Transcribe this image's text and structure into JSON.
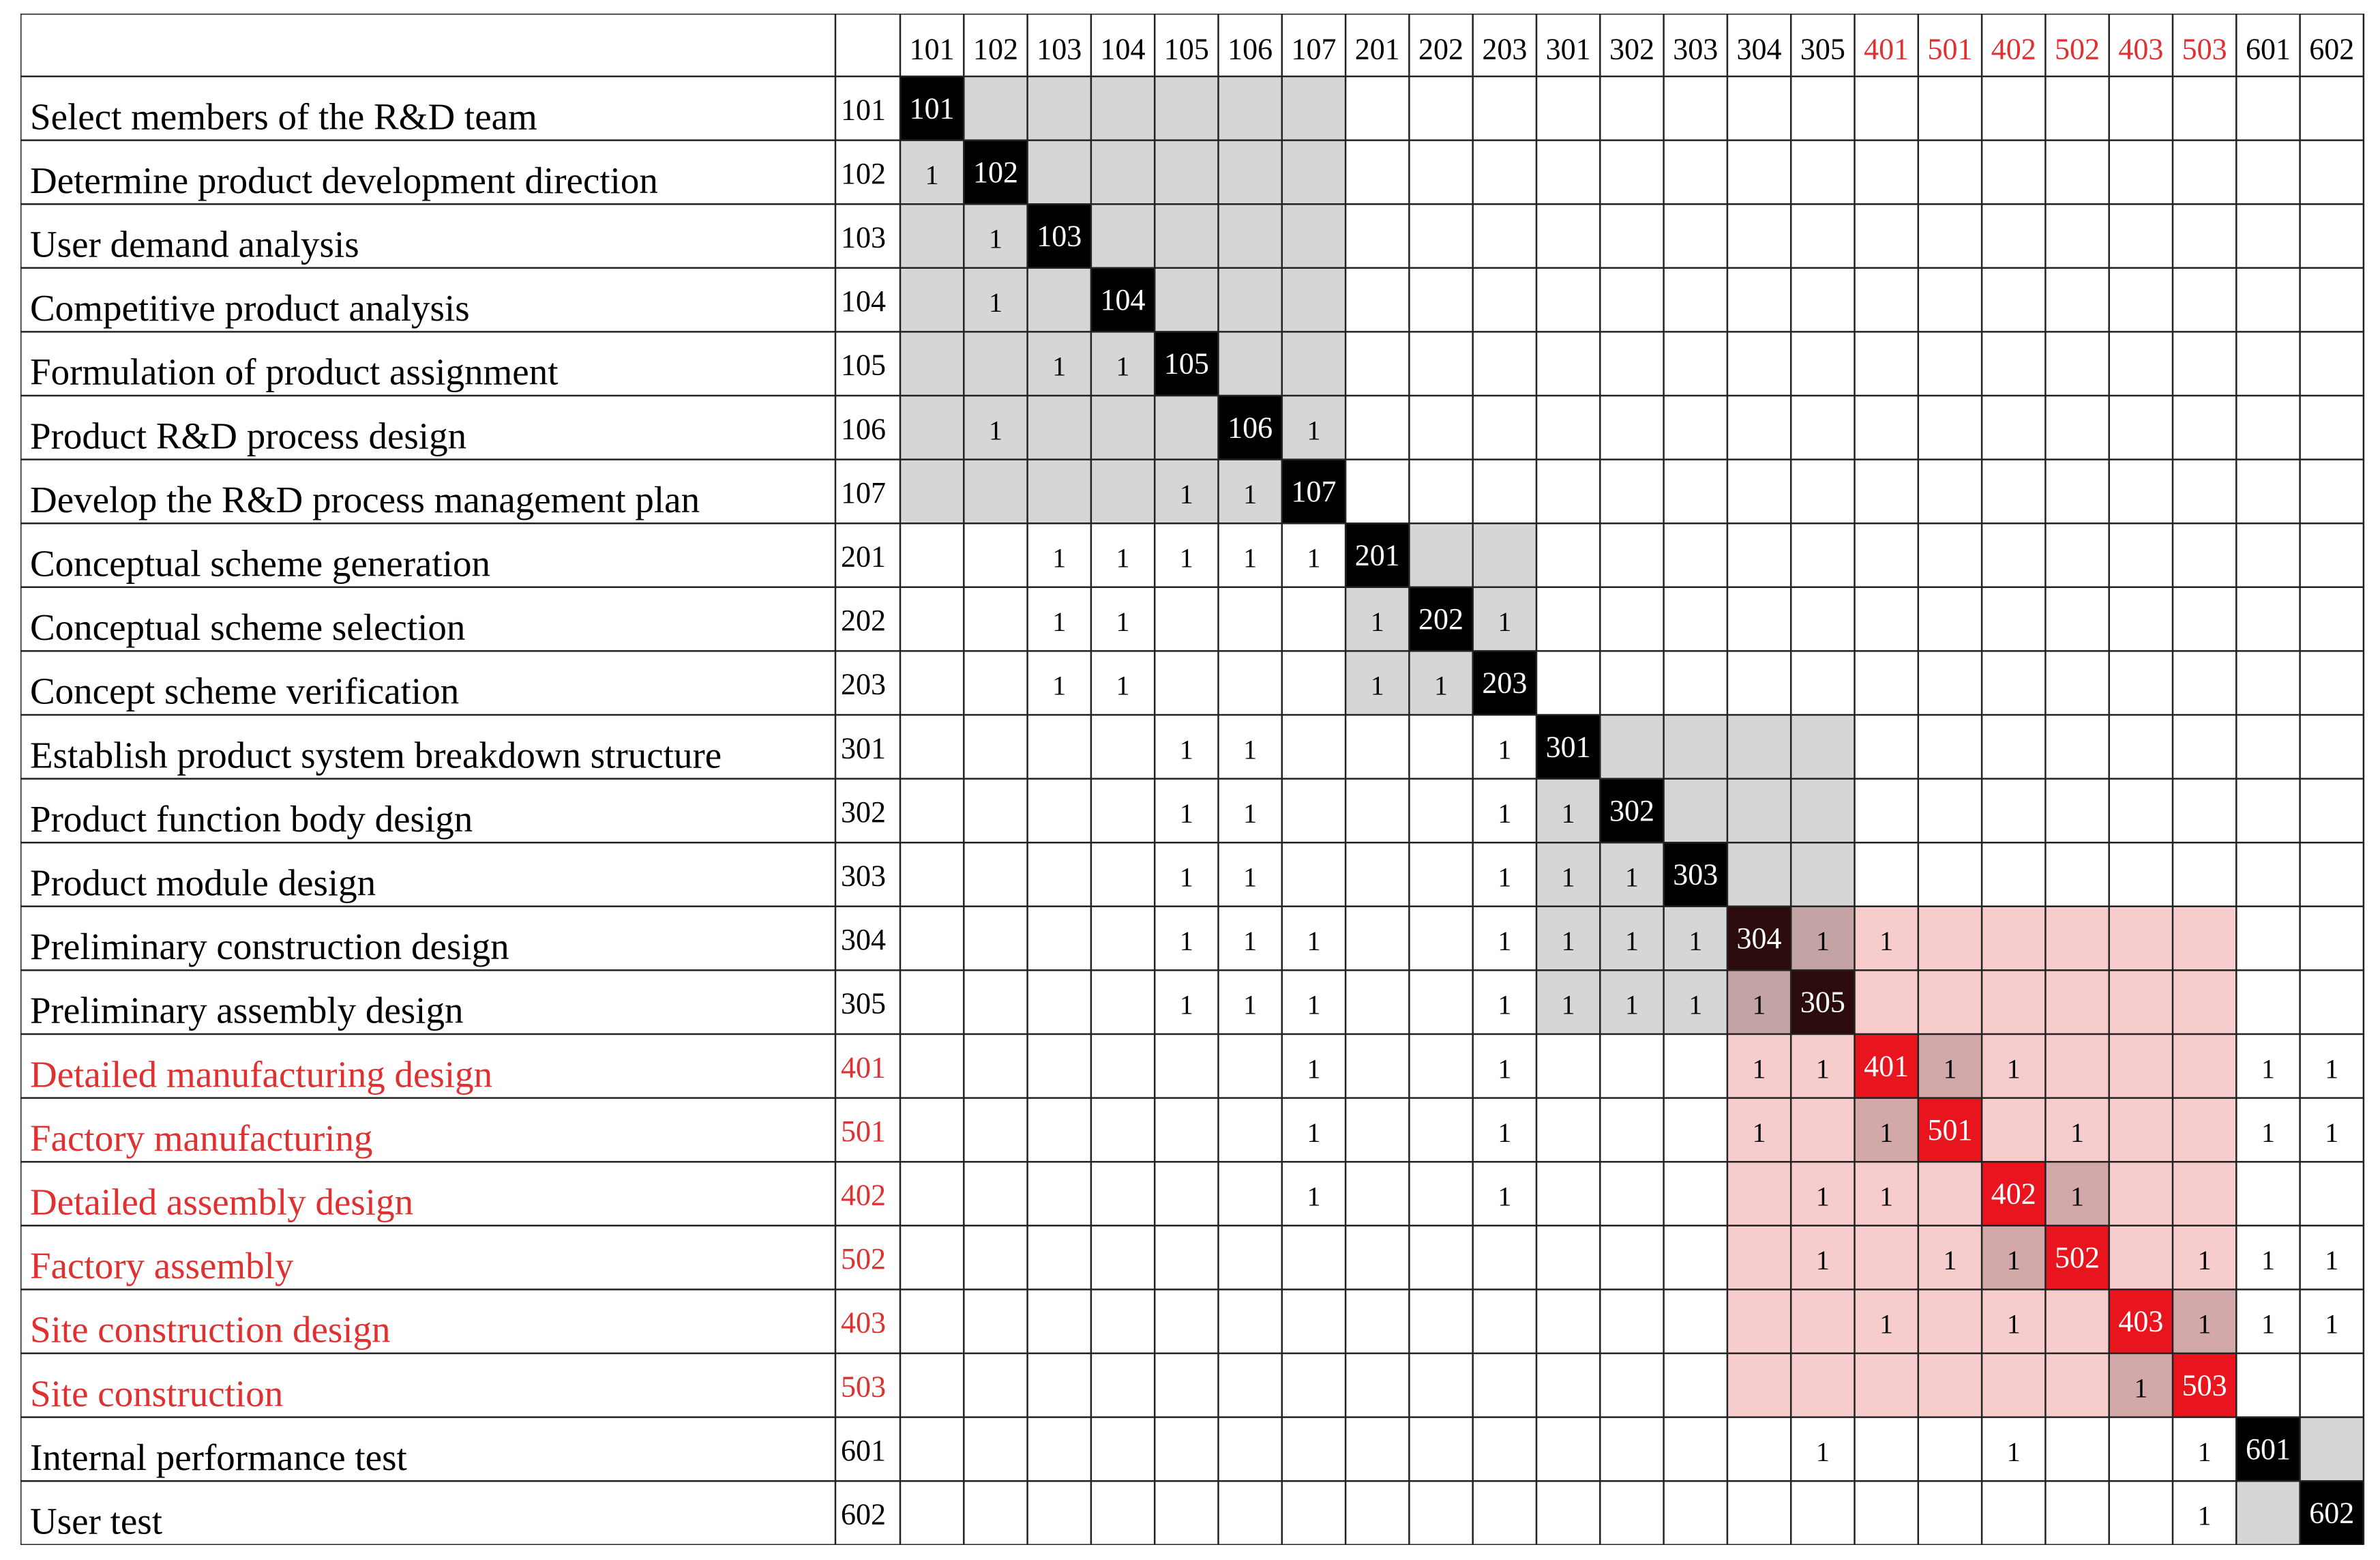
{
  "columns": [
    "101",
    "102",
    "103",
    "104",
    "105",
    "106",
    "107",
    "201",
    "202",
    "203",
    "301",
    "302",
    "303",
    "304",
    "305",
    "401",
    "501",
    "402",
    "502",
    "403",
    "503",
    "601",
    "602"
  ],
  "rows": [
    {
      "name": "Select members of the R&D team",
      "code": "101",
      "marks": []
    },
    {
      "name": "Determine product development direction",
      "code": "102",
      "marks": [
        "101"
      ]
    },
    {
      "name": "User demand analysis",
      "code": "103",
      "marks": [
        "102"
      ]
    },
    {
      "name": "Competitive product analysis",
      "code": "104",
      "marks": [
        "102"
      ]
    },
    {
      "name": "Formulation of product assignment",
      "code": "105",
      "marks": [
        "103",
        "104"
      ]
    },
    {
      "name": "Product R&D process design",
      "code": "106",
      "marks": [
        "102",
        "107"
      ]
    },
    {
      "name": "Develop the R&D process management plan",
      "code": "107",
      "marks": [
        "105",
        "106"
      ]
    },
    {
      "name": "Conceptual scheme generation",
      "code": "201",
      "marks": [
        "103",
        "104",
        "105",
        "106",
        "107"
      ]
    },
    {
      "name": "Conceptual scheme selection",
      "code": "202",
      "marks": [
        "103",
        "104",
        "201",
        "203"
      ]
    },
    {
      "name": "Concept scheme verification",
      "code": "203",
      "marks": [
        "103",
        "104",
        "201",
        "202"
      ]
    },
    {
      "name": "Establish product system breakdown structure",
      "code": "301",
      "marks": [
        "105",
        "106",
        "203"
      ]
    },
    {
      "name": "Product function body design",
      "code": "302",
      "marks": [
        "105",
        "106",
        "203",
        "301"
      ]
    },
    {
      "name": "Product module design",
      "code": "303",
      "marks": [
        "105",
        "106",
        "203",
        "301",
        "302"
      ]
    },
    {
      "name": "Preliminary construction design",
      "code": "304",
      "marks": [
        "105",
        "106",
        "107",
        "203",
        "301",
        "302",
        "303",
        "305",
        "401"
      ]
    },
    {
      "name": "Preliminary assembly design",
      "code": "305",
      "marks": [
        "105",
        "106",
        "107",
        "203",
        "301",
        "302",
        "303",
        "304"
      ]
    },
    {
      "name": "Detailed manufacturing design",
      "code": "401",
      "marks": [
        "107",
        "203",
        "304",
        "305",
        "501",
        "402",
        "601",
        "602"
      ]
    },
    {
      "name": "Factory manufacturing",
      "code": "501",
      "marks": [
        "107",
        "203",
        "304",
        "401",
        "502",
        "601",
        "602"
      ]
    },
    {
      "name": "Detailed assembly design",
      "code": "402",
      "marks": [
        "107",
        "203",
        "305",
        "401",
        "502"
      ]
    },
    {
      "name": "Factory assembly",
      "code": "502",
      "marks": [
        "305",
        "501",
        "402",
        "503",
        "601",
        "602"
      ]
    },
    {
      "name": "Site construction design",
      "code": "403",
      "marks": [
        "401",
        "402",
        "503",
        "601",
        "602"
      ]
    },
    {
      "name": "Site construction",
      "code": "503",
      "marks": [
        "403"
      ]
    },
    {
      "name": "Internal performance test",
      "code": "601",
      "marks": [
        "305",
        "402",
        "503"
      ]
    },
    {
      "name": "User test",
      "code": "602",
      "marks": [
        "503"
      ]
    }
  ],
  "mark_symbol": "1",
  "red_codes": [
    "401",
    "501",
    "402",
    "502",
    "403",
    "503"
  ],
  "blocks": [
    {
      "from": 0,
      "to": 6,
      "kind": "gray"
    },
    {
      "from": 7,
      "to": 9,
      "kind": "gray"
    },
    {
      "from": 10,
      "to": 14,
      "kind": "gray"
    },
    {
      "from": 13,
      "to": 20,
      "kind": "pink"
    },
    {
      "from": 21,
      "to": 22,
      "kind": "gray"
    }
  ],
  "overlaps": [
    {
      "from": 15,
      "to": 16
    },
    {
      "from": 17,
      "to": 18
    },
    {
      "from": 19,
      "to": 20
    },
    {
      "from": 13,
      "to": 14
    }
  ],
  "colors": {
    "text": "#000000",
    "red": "#e03030",
    "gray_block": "#d6d6d6",
    "pink_block": "#f7cccc",
    "overlap_red": "#d3a8a8",
    "overlap_gray": "#c3a3a3",
    "diag_black": "#000000",
    "diag_red": "#e8141e",
    "diag_dark": "#2b0b0b",
    "grid": "#222222"
  }
}
